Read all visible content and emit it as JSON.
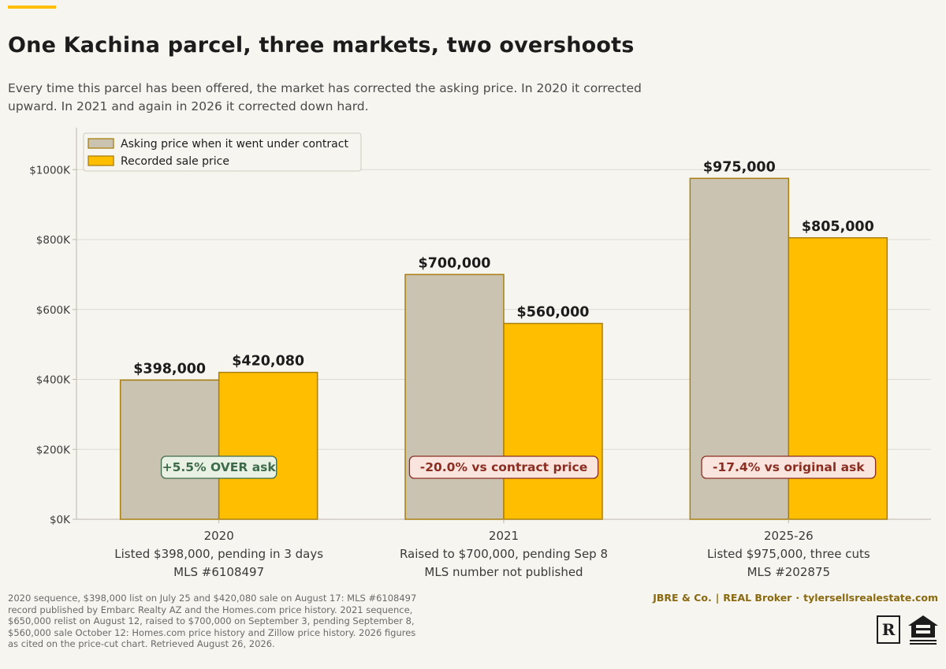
{
  "title": "One Kachina parcel, three markets, two overshoots",
  "subtitle": "Every time this parcel has been offered, the market has corrected the asking price. In 2020 it corrected upward. In 2021 and again in 2026 it corrected down hard.",
  "chart_data": {
    "type": "bar",
    "categories": [
      "2020",
      "2021",
      "2025-26"
    ],
    "category_notes": [
      [
        "Listed $398,000, pending in 3 days",
        "MLS #6108497"
      ],
      [
        "Raised to $700,000, pending Sep 8",
        "MLS number not published"
      ],
      [
        "Listed $975,000, three cuts",
        "MLS #202875"
      ]
    ],
    "series": [
      {
        "name": "Asking price when it went under contract",
        "values": [
          398000,
          700000,
          975000
        ],
        "value_labels": [
          "$398,000",
          "$700,000",
          "$975,000"
        ],
        "color": "#cbc3b2"
      },
      {
        "name": "Recorded sale price",
        "values": [
          420080,
          560000,
          805000
        ],
        "value_labels": [
          "$420,080",
          "$560,000",
          "$805,000"
        ],
        "color": "#ffbf00"
      }
    ],
    "annotations": [
      {
        "text": "+5.5% OVER ask",
        "tone": "positive"
      },
      {
        "text": "-20.0% vs contract price",
        "tone": "negative"
      },
      {
        "text": "-17.4% vs original ask",
        "tone": "negative"
      }
    ],
    "ylim": [
      0,
      1120000
    ],
    "yticks": [
      0,
      200000,
      400000,
      600000,
      800000,
      1000000
    ],
    "ytick_labels": [
      "$0K",
      "$200K",
      "$400K",
      "$600K",
      "$800K",
      "$1000K"
    ],
    "grid": true,
    "legend_placement": "top-left",
    "colors": {
      "bar_border": "#a97f10",
      "positive_text": "#3d6b4a",
      "positive_fill": "#e8f1e4",
      "negative_text": "#8b2e22",
      "negative_fill": "#f9e4de"
    }
  },
  "footer": {
    "sources": "2020 sequence, $398,000 list on July 25 and $420,080 sale on August 17: MLS #6108497 record published by Embarc Realty AZ and the Homes.com price history. 2021 sequence, $650,000 relist on August 12, raised to $700,000 on September 3, pending September 8, $560,000 sale October 12: Homes.com price history and Zillow price history. 2026 figures as cited on the price-cut chart. Retrieved August 26, 2026.",
    "brand_name": "JBRE & Co.",
    "brand_sep": "|",
    "brokerage": "REAL Broker",
    "dot": "·",
    "website": "tylersellsrealestate.com",
    "realtor_logo": "realtor-logo",
    "realtor_letter": "R",
    "equal_housing_logo": "equal-housing-opportunity-logo"
  }
}
